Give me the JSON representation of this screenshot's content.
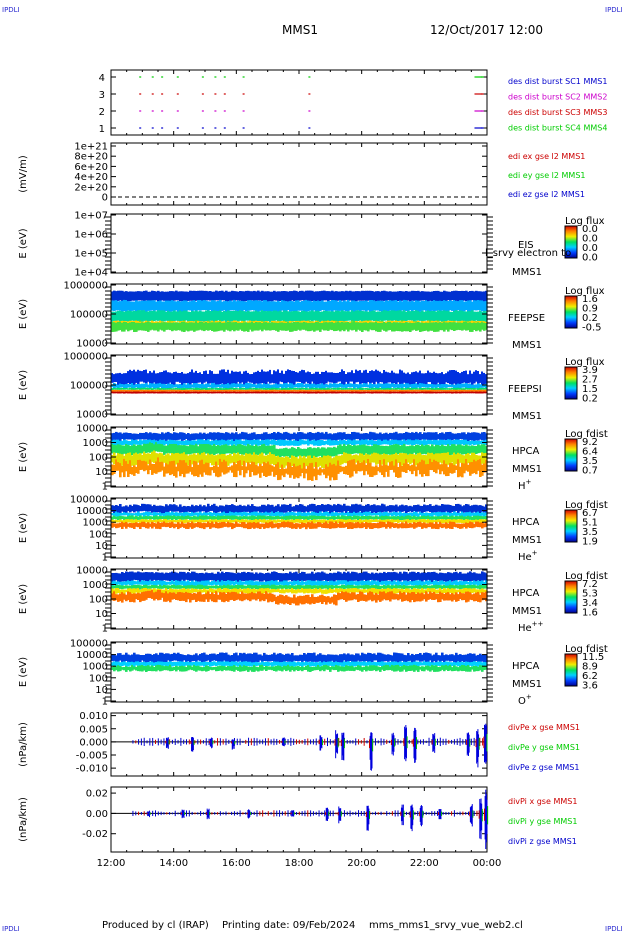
{
  "header": {
    "corner_label": "IPDLI",
    "mission": "MMS1",
    "datetime": "12/Oct/2017 12:00"
  },
  "footer": {
    "produced_by": "Produced by cl (IRAP)",
    "printing_date": "Printing date: 09/Feb/2024",
    "script_name": "mms_mms1_srvy_vue_web2.cl"
  },
  "time_axis": {
    "start_hour": 12,
    "end_hour": 24,
    "tick_labels": [
      "12:00",
      "14:00",
      "16:00",
      "18:00",
      "20:00",
      "22:00",
      "00:00"
    ]
  },
  "chart_data": [
    {
      "id": "burst",
      "type": "scatter",
      "y_ticks": [
        "1",
        "2",
        "3",
        "4"
      ],
      "legend": [
        {
          "label": "des dist burst SC1 MMS1",
          "color": "#0000cc"
        },
        {
          "label": "des dist burst SC2 MMS2",
          "color": "#cc00cc"
        },
        {
          "label": "des dist burst SC3 MMS3",
          "color": "#cc0000"
        },
        {
          "label": "des dist burst SC4 MMS4",
          "color": "#00cc00"
        }
      ],
      "burst_times_hours": [
        12.9,
        13.3,
        13.6,
        14.1,
        14.9,
        15.3,
        15.6,
        16.2,
        18.3,
        23.6,
        23.8
      ]
    },
    {
      "id": "edi",
      "type": "line",
      "ylabel": "(mV/m)",
      "y_ticks": [
        "1e+21",
        "8e+20",
        "6e+20",
        "4e+20",
        "2e+20",
        "0"
      ],
      "legend": [
        {
          "label": "edi ex gse l2 MMS1",
          "color": "#cc0000"
        },
        {
          "label": "edi ey gse l2 MMS1",
          "color": "#00cc00"
        },
        {
          "label": "edi ez gse l2 MMS1",
          "color": "#0000cc"
        }
      ],
      "values": "no data (dashed zero line only)"
    },
    {
      "id": "eis",
      "type": "heatmap",
      "ylabel": "E (eV)",
      "y_ticks": [
        "1e+07",
        "1e+06",
        "1e+05",
        "1e+04"
      ],
      "instrument": [
        "EIS",
        "MMS1"
      ],
      "overlay_text": "l_srvy electron to",
      "colorbar": {
        "title": "Log flux",
        "ticks": [
          "0.0",
          "0.0",
          "0.0",
          "0.0"
        ]
      }
    },
    {
      "id": "feeps_e",
      "type": "heatmap",
      "ylabel": "E (eV)",
      "y_ticks": [
        "1000000",
        "100000",
        "10000"
      ],
      "instrument": [
        "FEEPSE",
        "MMS1"
      ],
      "colorbar": {
        "title": "Log flux",
        "ticks": [
          "1.6",
          "0.9",
          "0.2",
          "-0.5"
        ]
      }
    },
    {
      "id": "feeps_i",
      "type": "heatmap",
      "ylabel": "E (eV)",
      "y_ticks": [
        "1000000",
        "100000",
        "10000"
      ],
      "instrument": [
        "FEEPSI",
        "MMS1"
      ],
      "colorbar": {
        "title": "Log flux",
        "ticks": [
          "3.9",
          "2.7",
          "1.5",
          "0.2"
        ]
      }
    },
    {
      "id": "hpca_h",
      "type": "heatmap",
      "ylabel": "E (eV)",
      "y_ticks": [
        "10000",
        "1000",
        "100",
        "10",
        "1"
      ],
      "instrument": [
        "HPCA",
        "MMS1"
      ],
      "species": {
        "base": "H",
        "sup": "+"
      },
      "colorbar": {
        "title": "Log fdist",
        "ticks": [
          "9.2",
          "6.4",
          "3.5",
          "0.7"
        ]
      }
    },
    {
      "id": "hpca_he1",
      "type": "heatmap",
      "ylabel": "E (eV)",
      "y_ticks": [
        "100000",
        "10000",
        "1000",
        "100",
        "10",
        "1"
      ],
      "instrument": [
        "HPCA",
        "MMS1"
      ],
      "species": {
        "base": "He",
        "sup": "+"
      },
      "colorbar": {
        "title": "Log fdist",
        "ticks": [
          "6.7",
          "5.1",
          "3.5",
          "1.9"
        ]
      }
    },
    {
      "id": "hpca_he2",
      "type": "heatmap",
      "ylabel": "E (eV)",
      "y_ticks": [
        "10000",
        "1000",
        "100",
        "10",
        "1"
      ],
      "instrument": [
        "HPCA",
        "MMS1"
      ],
      "species": {
        "base": "He",
        "sup": "++"
      },
      "colorbar": {
        "title": "Log fdist",
        "ticks": [
          "7.2",
          "5.3",
          "3.4",
          "1.6"
        ]
      }
    },
    {
      "id": "hpca_o",
      "type": "heatmap",
      "ylabel": "E (eV)",
      "y_ticks": [
        "100000",
        "10000",
        "1000",
        "100",
        "10",
        "1"
      ],
      "instrument": [
        "HPCA",
        "MMS1"
      ],
      "species": {
        "base": "O",
        "sup": "+"
      },
      "colorbar": {
        "title": "Log fdist",
        "ticks": [
          "11.5",
          "8.9",
          "6.2",
          "3.6"
        ]
      }
    },
    {
      "id": "divpe",
      "type": "line",
      "ylabel": "(nPa/km)",
      "y_ticks": [
        "0.010",
        "0.005",
        "0.000",
        "-0.005",
        "-0.010"
      ],
      "ylim": [
        -0.013,
        0.011
      ],
      "legend": [
        {
          "label": "divPe x gse MMS1",
          "color": "#cc0000"
        },
        {
          "label": "divPe y gse MMS1",
          "color": "#00cc00"
        },
        {
          "label": "divPe z gse MMS1",
          "color": "#0000cc"
        }
      ],
      "spikes": [
        {
          "t": 13.8,
          "lo": -0.003,
          "hi": 0.002
        },
        {
          "t": 14.6,
          "lo": -0.004,
          "hi": 0.002
        },
        {
          "t": 15.2,
          "lo": -0.003,
          "hi": 0.002
        },
        {
          "t": 15.9,
          "lo": -0.003,
          "hi": 0.001
        },
        {
          "t": 17.5,
          "lo": -0.002,
          "hi": 0.002
        },
        {
          "t": 18.7,
          "lo": -0.004,
          "hi": 0.003
        },
        {
          "t": 19.2,
          "lo": -0.007,
          "hi": 0.005
        },
        {
          "t": 19.4,
          "lo": -0.008,
          "hi": 0.004
        },
        {
          "t": 20.3,
          "lo": -0.012,
          "hi": 0.004
        },
        {
          "t": 21.0,
          "lo": -0.006,
          "hi": 0.004
        },
        {
          "t": 21.4,
          "lo": -0.008,
          "hi": 0.007
        },
        {
          "t": 21.7,
          "lo": -0.009,
          "hi": 0.006
        },
        {
          "t": 22.3,
          "lo": -0.005,
          "hi": 0.004
        },
        {
          "t": 23.4,
          "lo": -0.006,
          "hi": 0.004
        },
        {
          "t": 23.7,
          "lo": -0.01,
          "hi": 0.005
        },
        {
          "t": 23.95,
          "lo": -0.012,
          "hi": 0.01
        }
      ]
    },
    {
      "id": "divpi",
      "type": "line",
      "ylabel": "(nPa/km)",
      "y_ticks": [
        "0.02",
        "0.00",
        "-0.02"
      ],
      "ylim": [
        -0.038,
        0.026
      ],
      "legend": [
        {
          "label": "divPi x gse MMS1",
          "color": "#cc0000"
        },
        {
          "label": "divPi y gse MMS1",
          "color": "#00cc00"
        },
        {
          "label": "divPi z gse MMS1",
          "color": "#0000cc"
        }
      ],
      "spikes": [
        {
          "t": 13.2,
          "lo": -0.004,
          "hi": 0.003
        },
        {
          "t": 14.3,
          "lo": -0.005,
          "hi": 0.004
        },
        {
          "t": 15.1,
          "lo": -0.006,
          "hi": 0.005
        },
        {
          "t": 16.4,
          "lo": -0.005,
          "hi": 0.004
        },
        {
          "t": 17.8,
          "lo": -0.004,
          "hi": 0.004
        },
        {
          "t": 18.9,
          "lo": -0.008,
          "hi": 0.006
        },
        {
          "t": 19.3,
          "lo": -0.01,
          "hi": 0.007
        },
        {
          "t": 20.2,
          "lo": -0.018,
          "hi": 0.008
        },
        {
          "t": 21.3,
          "lo": -0.012,
          "hi": 0.009
        },
        {
          "t": 21.6,
          "lo": -0.02,
          "hi": 0.01
        },
        {
          "t": 21.9,
          "lo": -0.014,
          "hi": 0.009
        },
        {
          "t": 22.5,
          "lo": -0.008,
          "hi": 0.006
        },
        {
          "t": 23.5,
          "lo": -0.014,
          "hi": 0.01
        },
        {
          "t": 23.8,
          "lo": -0.026,
          "hi": 0.015
        },
        {
          "t": 23.97,
          "lo": -0.036,
          "hi": 0.024
        }
      ]
    }
  ]
}
